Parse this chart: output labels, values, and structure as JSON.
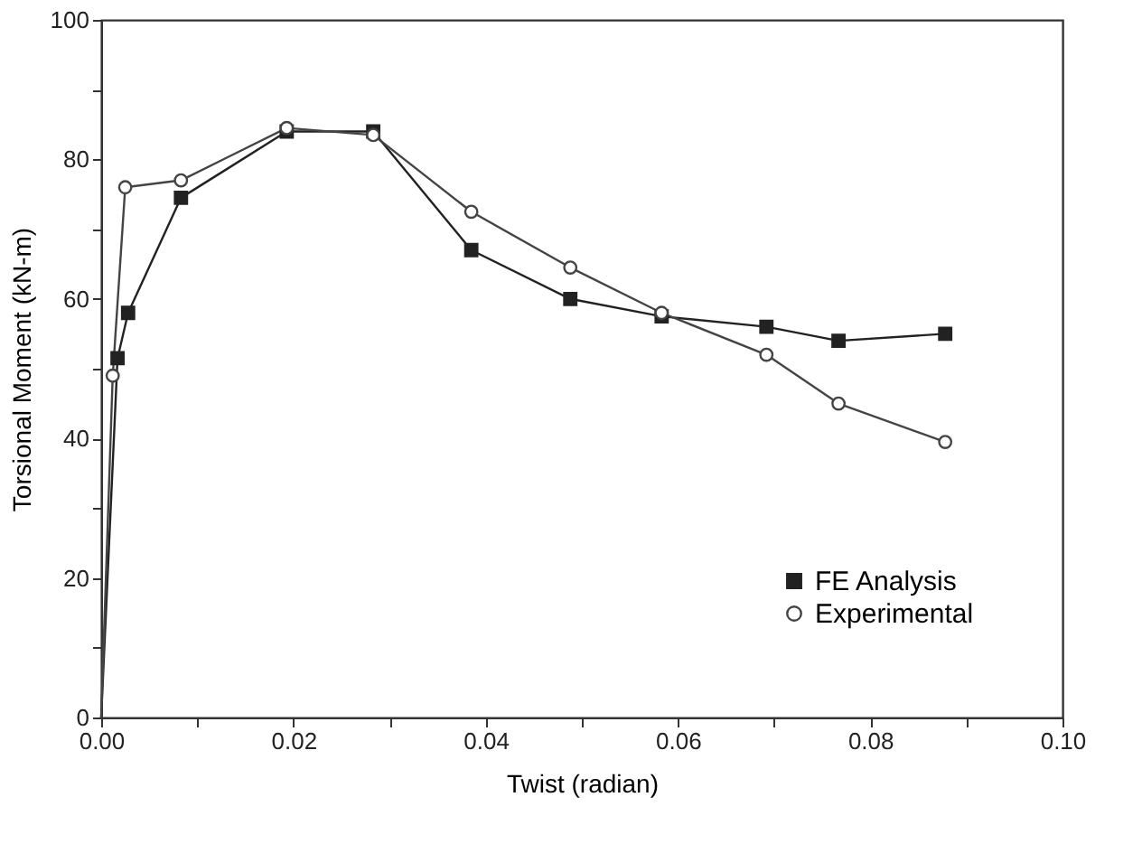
{
  "chart_data": {
    "type": "line",
    "xlabel": "Twist (radian)",
    "ylabel": "Torsional Moment (kN-m)",
    "xlim": [
      0,
      0.1
    ],
    "ylim": [
      0,
      100
    ],
    "xticks": [
      {
        "value": 0,
        "label": "0.00"
      },
      {
        "value": 0.01,
        "label": null
      },
      {
        "value": 0.02,
        "label": "0.02"
      },
      {
        "value": 0.03,
        "label": null
      },
      {
        "value": 0.04,
        "label": "0.04"
      },
      {
        "value": 0.05,
        "label": null
      },
      {
        "value": 0.06,
        "label": "0.06"
      },
      {
        "value": 0.07,
        "label": null
      },
      {
        "value": 0.08,
        "label": "0.08"
      },
      {
        "value": 0.09,
        "label": null
      },
      {
        "value": 0.1,
        "label": "0.10"
      }
    ],
    "yticks": [
      0,
      {
        "value": 10,
        "label": null
      },
      20,
      {
        "value": 30,
        "label": null
      },
      40,
      {
        "value": 50,
        "label": null
      },
      60,
      {
        "value": 70,
        "label": null
      },
      80,
      {
        "value": 90,
        "label": null
      },
      100
    ],
    "grid": false,
    "legend": "bottom right",
    "line_style": "solid",
    "series": [
      {
        "name": "FE Analysis",
        "color": "#222222",
        "marker": "square",
        "x": [
          0,
          0.0017,
          0.0028,
          0.0083,
          0.0193,
          0.0283,
          0.0385,
          0.0488,
          0.0583,
          0.0692,
          0.0767,
          0.0878
        ],
        "values": [
          0,
          51.5,
          58,
          74.5,
          84,
          84,
          67,
          60,
          57.5,
          56,
          54,
          55
        ]
      },
      {
        "name": "Experimental",
        "color": "#444444",
        "marker": "circle",
        "x": [
          0,
          0.0012,
          0.0025,
          0.0083,
          0.0193,
          0.0283,
          0.0385,
          0.0488,
          0.0583,
          0.0692,
          0.0767,
          0.0878
        ],
        "values": [
          0,
          49,
          76,
          77,
          84.5,
          83.5,
          72.5,
          64.5,
          58,
          52,
          45,
          39.5
        ]
      }
    ]
  }
}
